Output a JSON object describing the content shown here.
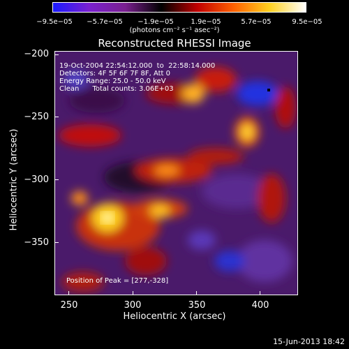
{
  "colorbar": {
    "ticks": [
      "−9.5e−05",
      "−5.7e−05",
      "−1.9e−05",
      "1.9e−05",
      "5.7e−05",
      "9.5e−05"
    ],
    "units": "(photons cm⁻² s⁻¹ asec⁻²)",
    "colors": [
      "#1a1aff",
      "#7a20d0",
      "#7a2090",
      "#000000",
      "#c00000",
      "#ff6000",
      "#ffd020",
      "#ffffff"
    ]
  },
  "title": "Reconstructed RHESSI Image",
  "info": {
    "time": "19-Oct-2004 22:54:12.000  to  22:58:14.000",
    "detectors": "Detectors: 4F 5F 6F 7F 8F, Att 0",
    "energy": "Energy Range: 25.0 - 50.0 keV",
    "method": "Clean      Total counts: 3.06E+03"
  },
  "peak": "Position of Peak = [277,-328]",
  "axes": {
    "xlabel": "Heliocentric X (arcsec)",
    "ylabel": "Heliocentric Y (arcsec)",
    "xticks": [
      "250",
      "300",
      "350",
      "400"
    ],
    "yticks": [
      "−200",
      "−250",
      "−300",
      "−350"
    ]
  },
  "date": "15-Jun-2013 18:42"
}
